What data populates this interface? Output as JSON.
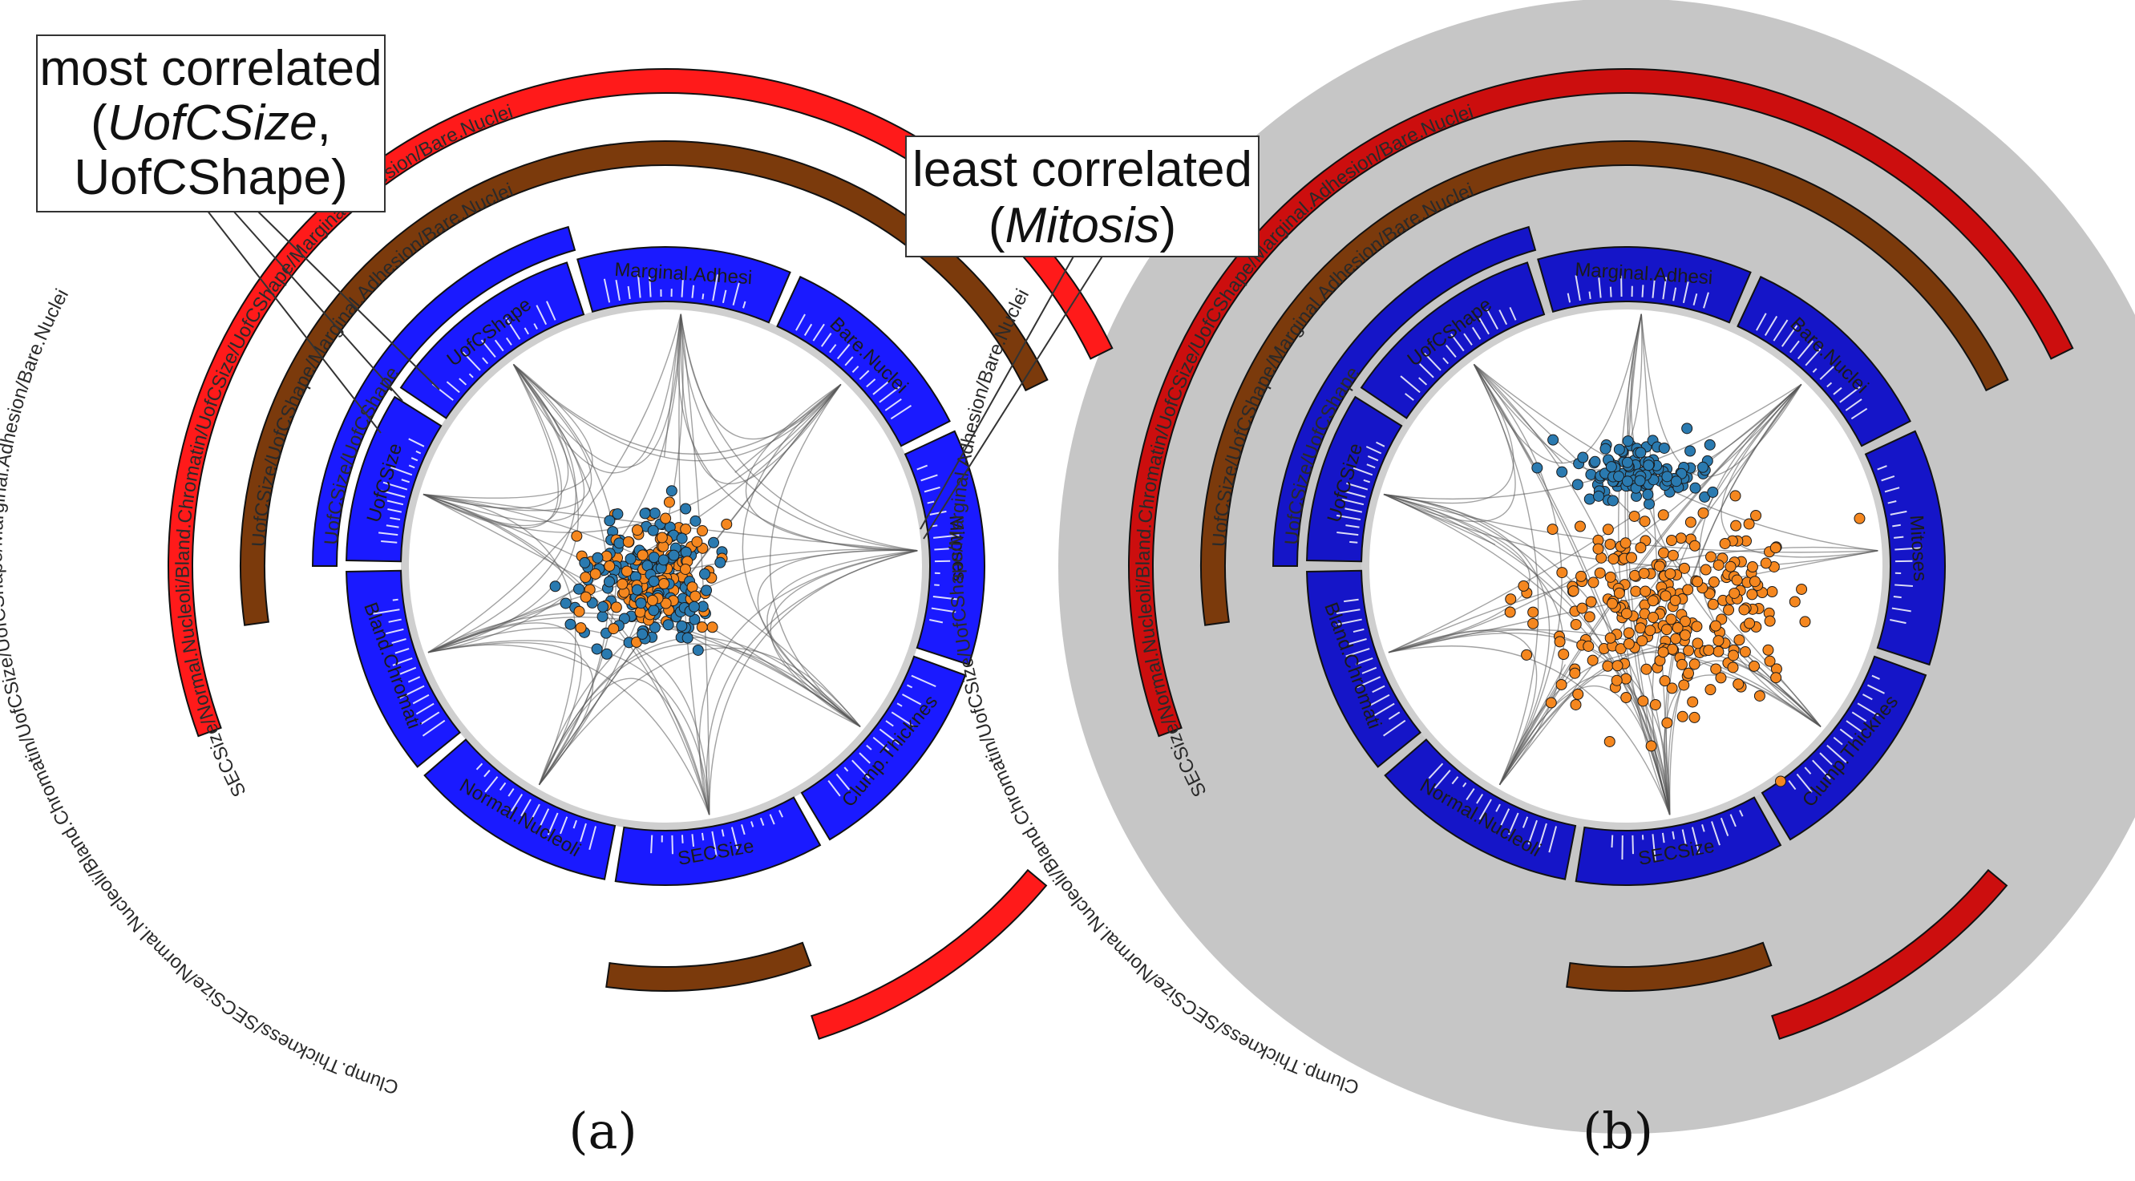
{
  "annotations": {
    "most_line1": "most correlated",
    "most_line2_italic": "UofCSize",
    "most_line2_paren_open": "(",
    "most_line2_suffix": ",",
    "most_line3": "UofCShape)",
    "least_line1": "least correlated",
    "least_line2_open": "(",
    "least_line2_italic": "Mitosis",
    "least_line2_close": ")"
  },
  "captions": {
    "a": "(a)",
    "b": "(b)"
  },
  "segments": [
    "UofCSize",
    "UofCShape",
    "Marginal.Adhesi",
    "Bare.Nuclei",
    "Mitoses",
    "Clump.Thicknes",
    "SECSize",
    "Normal.Nucleoli",
    "Bland.Chromati"
  ],
  "outer_arcs": {
    "level2_label": "UofCSize/UofCShape",
    "level3_label": "UofCSize/UofCShape/Marginal.Adhesion/Bare.Nuclei",
    "level4_label": "SECSize/Normal.Nucleoli/Bland.Chromatin/UofCSize/UofCShape/Marginal.Adhesion/Bare.Nuclei",
    "level5_label": "Clump.Thickness/SECSize/Normal.Nucleoli/Bland.Chromatin/UofCSize/UofCShape/Marginal.Adhesion/Bare.Nuclei"
  },
  "colors": {
    "segment_a": "#1a1aff",
    "segment_b": "#1515c8",
    "brown": "#7b3a0c",
    "red_a": "#ff1a1a",
    "red_b": "#cc0e0e",
    "bg_b": "#c6c6c6",
    "dot_orange": "#f5871f",
    "dot_blue": "#2a7ab0"
  }
}
